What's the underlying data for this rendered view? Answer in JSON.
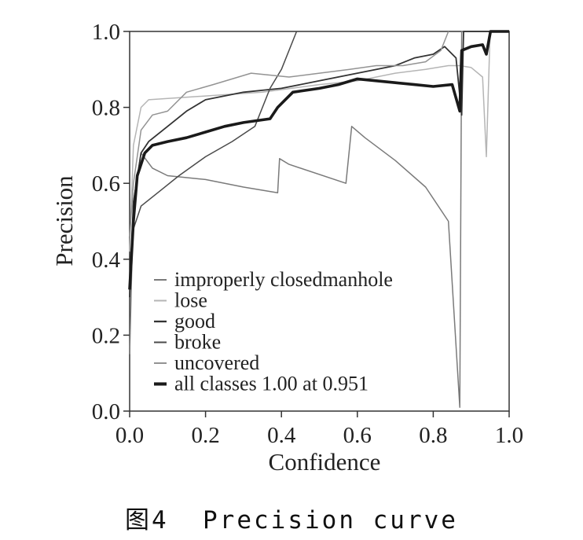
{
  "figure": {
    "caption": "图4  Precision curve"
  },
  "chart_data": {
    "type": "line",
    "title": "",
    "xlabel": "Confidence",
    "ylabel": "Precision",
    "xlim": [
      0,
      1
    ],
    "ylim": [
      0,
      1
    ],
    "xticks": [
      "0.0",
      "0.2",
      "0.4",
      "0.6",
      "0.8",
      "1.0"
    ],
    "yticks": [
      "0.0",
      "0.2",
      "0.4",
      "0.6",
      "0.8",
      "1.0"
    ],
    "grid": false,
    "legend_position": "lower-left",
    "series": [
      {
        "name": "improperly closedmanhole",
        "color": "#7a7a7a",
        "width": 1.5,
        "points": [
          [
            0,
            0.15
          ],
          [
            0.01,
            0.55
          ],
          [
            0.03,
            0.68
          ],
          [
            0.06,
            0.64
          ],
          [
            0.1,
            0.62
          ],
          [
            0.2,
            0.61
          ],
          [
            0.3,
            0.59
          ],
          [
            0.39,
            0.575
          ],
          [
            0.395,
            0.665
          ],
          [
            0.42,
            0.65
          ],
          [
            0.57,
            0.6
          ],
          [
            0.585,
            0.75
          ],
          [
            0.62,
            0.72
          ],
          [
            0.7,
            0.66
          ],
          [
            0.78,
            0.59
          ],
          [
            0.84,
            0.5
          ],
          [
            0.87,
            0.01
          ],
          [
            0.875,
            1.0
          ],
          [
            0.88,
            1.0
          ],
          [
            1.0,
            1.0
          ]
        ]
      },
      {
        "name": "lose",
        "color": "#b5b5b5",
        "width": 1.5,
        "points": [
          [
            0,
            0.42
          ],
          [
            0.01,
            0.7
          ],
          [
            0.03,
            0.8
          ],
          [
            0.05,
            0.82
          ],
          [
            0.2,
            0.83
          ],
          [
            0.35,
            0.84
          ],
          [
            0.5,
            0.86
          ],
          [
            0.6,
            0.87
          ],
          [
            0.7,
            0.89
          ],
          [
            0.78,
            0.9
          ],
          [
            0.84,
            0.91
          ],
          [
            0.87,
            0.91
          ],
          [
            0.9,
            0.905
          ],
          [
            0.93,
            0.88
          ],
          [
            0.94,
            0.67
          ],
          [
            0.95,
            1.0
          ],
          [
            1.0,
            1.0
          ]
        ]
      },
      {
        "name": "good",
        "color": "#333333",
        "width": 1.8,
        "points": [
          [
            0,
            0.3
          ],
          [
            0.01,
            0.55
          ],
          [
            0.03,
            0.68
          ],
          [
            0.05,
            0.71
          ],
          [
            0.1,
            0.75
          ],
          [
            0.15,
            0.79
          ],
          [
            0.2,
            0.82
          ],
          [
            0.3,
            0.84
          ],
          [
            0.4,
            0.85
          ],
          [
            0.5,
            0.87
          ],
          [
            0.6,
            0.89
          ],
          [
            0.7,
            0.91
          ],
          [
            0.75,
            0.93
          ],
          [
            0.8,
            0.94
          ],
          [
            0.83,
            0.96
          ],
          [
            0.86,
            0.93
          ],
          [
            0.875,
            0.78
          ],
          [
            0.88,
            1.0
          ],
          [
            1.0,
            1.0
          ]
        ]
      },
      {
        "name": "broke",
        "color": "#4a4a4a",
        "width": 1.5,
        "points": [
          [
            0,
            0.35
          ],
          [
            0.01,
            0.48
          ],
          [
            0.03,
            0.54
          ],
          [
            0.08,
            0.58
          ],
          [
            0.13,
            0.62
          ],
          [
            0.2,
            0.67
          ],
          [
            0.27,
            0.71
          ],
          [
            0.33,
            0.75
          ],
          [
            0.37,
            0.85
          ],
          [
            0.4,
            0.9
          ],
          [
            0.44,
            1.0
          ]
        ]
      },
      {
        "name": "uncovered",
        "color": "#939393",
        "width": 1.5,
        "points": [
          [
            0,
            0.46
          ],
          [
            0.01,
            0.6
          ],
          [
            0.03,
            0.74
          ],
          [
            0.06,
            0.78
          ],
          [
            0.1,
            0.79
          ],
          [
            0.15,
            0.84
          ],
          [
            0.22,
            0.86
          ],
          [
            0.32,
            0.89
          ],
          [
            0.42,
            0.88
          ],
          [
            0.5,
            0.89
          ],
          [
            0.58,
            0.9
          ],
          [
            0.65,
            0.91
          ],
          [
            0.72,
            0.91
          ],
          [
            0.78,
            0.92
          ],
          [
            0.82,
            0.95
          ],
          [
            0.84,
            1.0
          ]
        ]
      },
      {
        "name": "all classes 1.00 at 0.951",
        "color": "#1a1a1a",
        "width": 3.6,
        "points": [
          [
            0,
            0.32
          ],
          [
            0.01,
            0.5
          ],
          [
            0.02,
            0.62
          ],
          [
            0.04,
            0.68
          ],
          [
            0.06,
            0.7
          ],
          [
            0.1,
            0.71
          ],
          [
            0.15,
            0.72
          ],
          [
            0.2,
            0.735
          ],
          [
            0.25,
            0.75
          ],
          [
            0.3,
            0.76
          ],
          [
            0.37,
            0.77
          ],
          [
            0.39,
            0.8
          ],
          [
            0.43,
            0.84
          ],
          [
            0.5,
            0.85
          ],
          [
            0.55,
            0.86
          ],
          [
            0.6,
            0.875
          ],
          [
            0.65,
            0.87
          ],
          [
            0.7,
            0.865
          ],
          [
            0.75,
            0.86
          ],
          [
            0.8,
            0.855
          ],
          [
            0.85,
            0.86
          ],
          [
            0.87,
            0.79
          ],
          [
            0.875,
            0.95
          ],
          [
            0.9,
            0.96
          ],
          [
            0.93,
            0.965
          ],
          [
            0.94,
            0.94
          ],
          [
            0.951,
            1.0
          ],
          [
            1.0,
            1.0
          ]
        ]
      }
    ]
  }
}
